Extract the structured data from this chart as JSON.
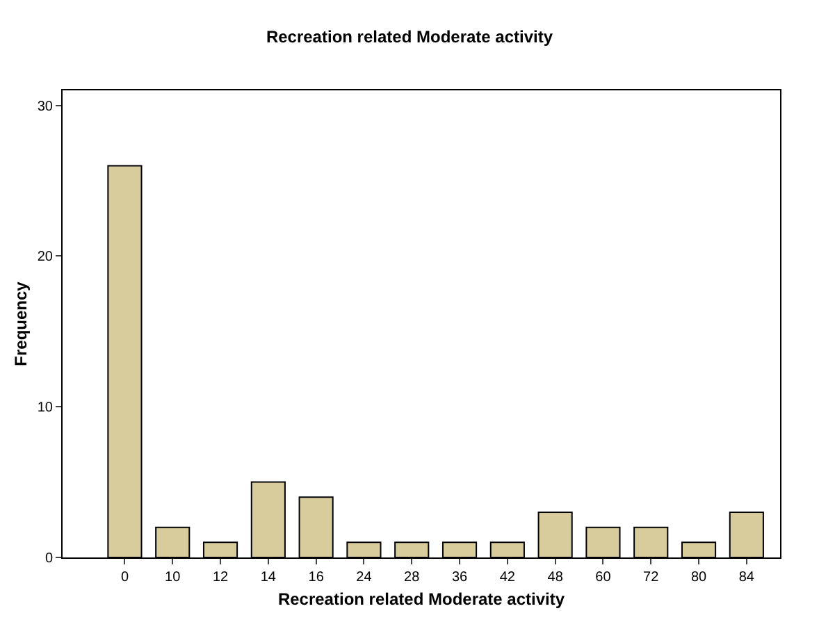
{
  "chart_data": {
    "type": "bar",
    "title": "Recreation related Moderate activity",
    "xlabel": "Recreation related Moderate activity",
    "ylabel": "Frequency",
    "categories": [
      "0",
      "10",
      "12",
      "14",
      "16",
      "24",
      "28",
      "36",
      "42",
      "48",
      "60",
      "72",
      "80",
      "84"
    ],
    "values": [
      26,
      2,
      1,
      5,
      4,
      1,
      1,
      1,
      1,
      3,
      2,
      2,
      1,
      3
    ],
    "color": "#d8cc9c",
    "ylim": [
      0,
      31
    ],
    "yticks": [
      0,
      10,
      20,
      30
    ]
  }
}
